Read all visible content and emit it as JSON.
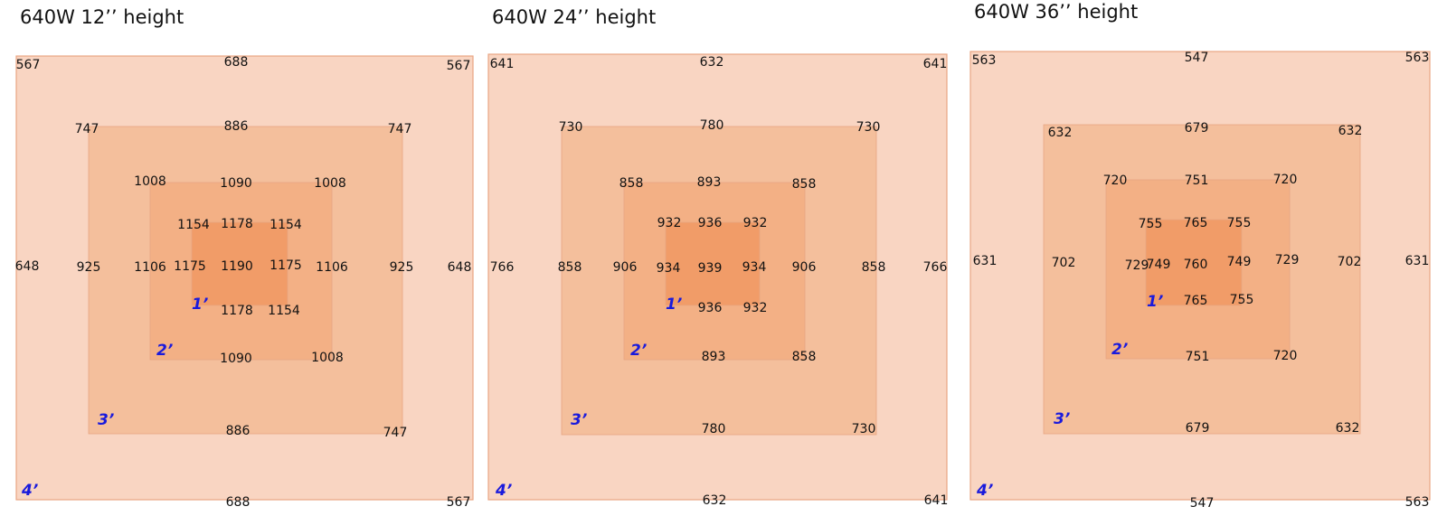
{
  "colors": {
    "zone_outer": "#f9d5c2",
    "zone_3": "#f4bf9c",
    "zone_2": "#f3b085",
    "zone_1": "#f19c68",
    "zone_border": "#e8a583",
    "zone_label": "#1a1adc",
    "text": "#111111"
  },
  "panels": [
    {
      "title": "640W 12’’  height",
      "zone_labels": [
        "1’",
        "2’",
        "3’",
        "4’"
      ],
      "readings": [
        "567",
        "688",
        "567",
        "747",
        "886",
        "747",
        "1008",
        "1090",
        "1008",
        "1154",
        "1178",
        "1154",
        "648",
        "925",
        "1106",
        "1175",
        "1190",
        "1175",
        "1106",
        "925",
        "648",
        "1178",
        "1154",
        "1090",
        "1008",
        "886",
        "747",
        "688",
        "567"
      ]
    },
    {
      "title": "640W 24’’  height",
      "zone_labels": [
        "1’",
        "2’",
        "3’",
        "4’"
      ],
      "readings": [
        "641",
        "632",
        "641",
        "730",
        "780",
        "730",
        "858",
        "893",
        "858",
        "932",
        "936",
        "932",
        "766",
        "858",
        "906",
        "934",
        "939",
        "934",
        "906",
        "858",
        "766",
        "936",
        "932",
        "893",
        "858",
        "780",
        "730",
        "632",
        "641"
      ]
    },
    {
      "title": "640W 36’’  height",
      "zone_labels": [
        "1’",
        "2’",
        "3’",
        "4’"
      ],
      "readings": [
        "563",
        "547",
        "563",
        "632",
        "679",
        "632",
        "720",
        "751",
        "720",
        "755",
        "765",
        "755",
        "631",
        "702",
        "729",
        "749",
        "760",
        "749",
        "729",
        "702",
        "631",
        "765",
        "755",
        "751",
        "720",
        "679",
        "632",
        "547",
        "563"
      ]
    }
  ]
}
